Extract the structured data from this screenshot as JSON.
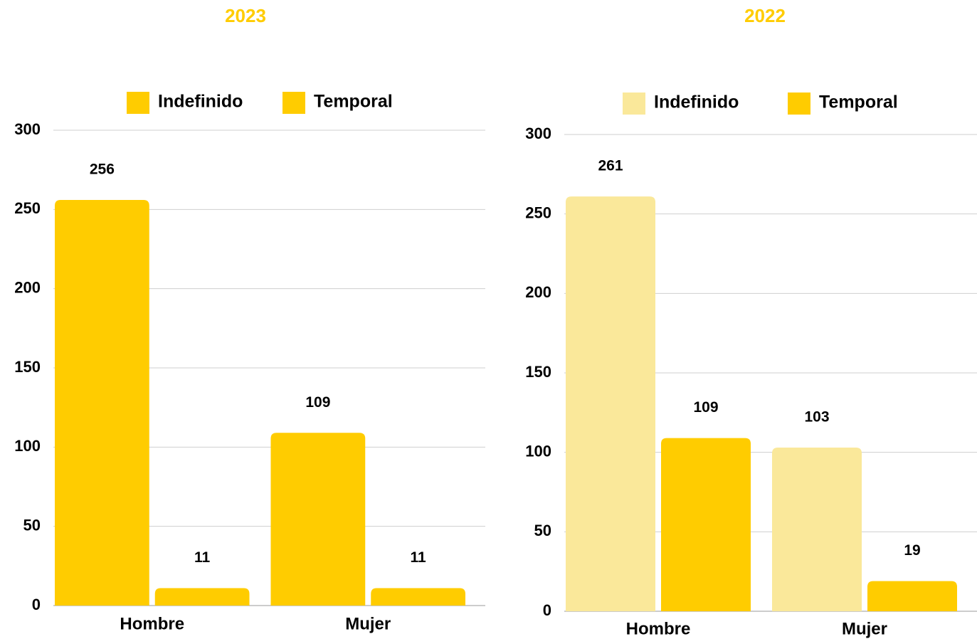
{
  "chart_data": [
    {
      "type": "bar",
      "title": "2023",
      "categories": [
        "Hombre",
        "Mujer"
      ],
      "series": [
        {
          "name": "Indefinido",
          "color": "#FFCC00",
          "values": [
            256,
            109
          ]
        },
        {
          "name": "Temporal",
          "color": "#FFCC00",
          "values": [
            11,
            11
          ]
        }
      ],
      "ylim": [
        0,
        300
      ],
      "yticks": [
        0,
        50,
        100,
        150,
        200,
        250,
        300
      ],
      "grid": true
    },
    {
      "type": "bar",
      "title": "2022",
      "categories": [
        "Hombre",
        "Mujer"
      ],
      "series": [
        {
          "name": "Indefinido",
          "color": "#FAE89A",
          "values": [
            261,
            103
          ]
        },
        {
          "name": "Temporal",
          "color": "#FFCC00",
          "values": [
            109,
            19
          ]
        }
      ],
      "ylim": [
        0,
        300
      ],
      "yticks": [
        0,
        50,
        100,
        150,
        200,
        250,
        300
      ],
      "grid": true
    }
  ]
}
